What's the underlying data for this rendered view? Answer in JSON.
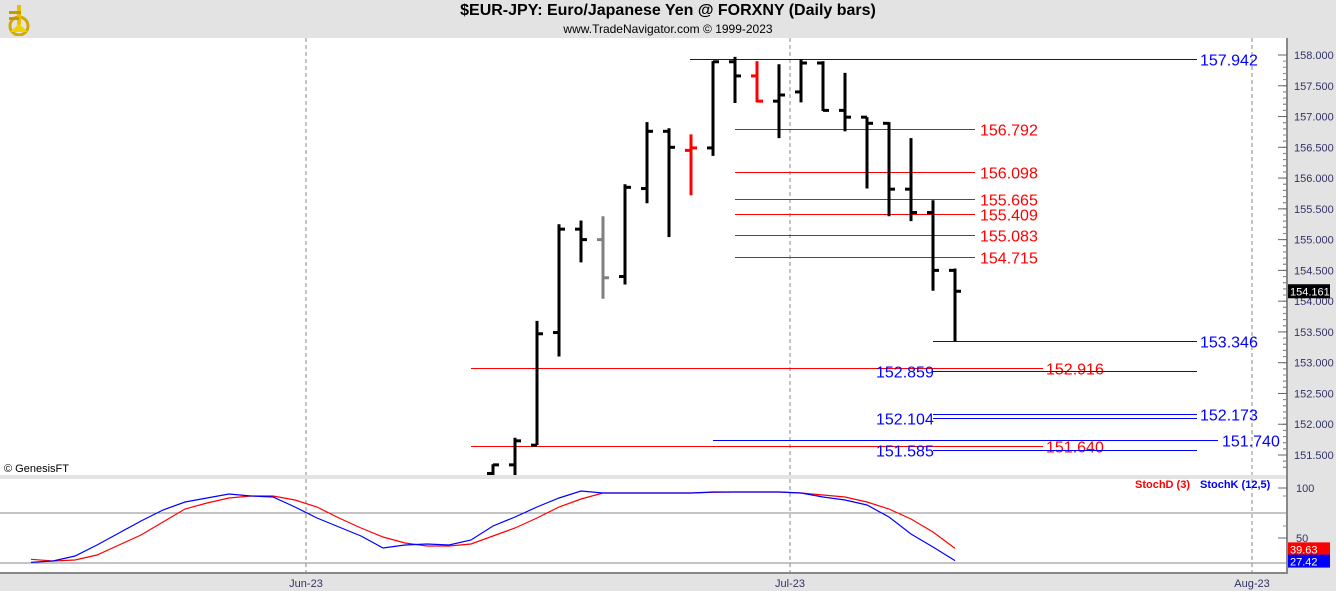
{
  "header": {
    "title": "$EUR-JPY:  Euro/Japanese Yen @ FORXNY  (Daily bars)",
    "subtitle": "www.TradeNavigator.com © 1999-2023",
    "logo": "sextant-logo"
  },
  "copyright": "© GenesisFT",
  "colors": {
    "bar": "#000000",
    "bar_gray": "#808080",
    "bar_red": "#ff0000",
    "blue": "#0000ff",
    "red": "#ff0000",
    "panel": "#e3e3e3"
  },
  "chart_data": [
    {
      "type": "ohlc",
      "title": "$EUR-JPY:  Euro/Japanese Yen @ FORXNY  (Daily bars)",
      "ylim": [
        151.2,
        158.3
      ],
      "y_ticks": [
        "158.000",
        "157.500",
        "157.000",
        "156.500",
        "156.000",
        "155.500",
        "155.000",
        "154.500",
        "154.000",
        "153.500",
        "153.000",
        "152.500",
        "152.000",
        "151.500"
      ],
      "x_ticks": [
        {
          "label": "Jun-23",
          "date": "2023-06-01"
        },
        {
          "label": "Jul-23",
          "date": "2023-07-03"
        },
        {
          "label": "Aug-23",
          "date": "2023-08-01"
        }
      ],
      "last_price": "154.161",
      "bars": [
        {
          "date": "2023-06-13",
          "o": 151.2,
          "h": 151.35,
          "l": 151.1,
          "c": 151.34,
          "color": "black"
        },
        {
          "date": "2023-06-14",
          "o": 151.34,
          "h": 151.78,
          "l": 151.15,
          "c": 151.73,
          "color": "black"
        },
        {
          "date": "2023-06-15",
          "o": 151.66,
          "h": 153.68,
          "l": 151.66,
          "c": 153.47,
          "color": "black"
        },
        {
          "date": "2023-06-16",
          "o": 153.49,
          "h": 155.25,
          "l": 153.1,
          "c": 155.17,
          "color": "black"
        },
        {
          "date": "2023-06-19",
          "o": 155.17,
          "h": 155.31,
          "l": 154.63,
          "c": 155.0,
          "color": "black"
        },
        {
          "date": "2023-06-20",
          "o": 155.0,
          "h": 155.38,
          "l": 154.04,
          "c": 154.38,
          "color": "gray"
        },
        {
          "date": "2023-06-21",
          "o": 154.4,
          "h": 155.9,
          "l": 154.27,
          "c": 155.85,
          "color": "black"
        },
        {
          "date": "2023-06-22",
          "o": 155.83,
          "h": 156.91,
          "l": 155.59,
          "c": 156.76,
          "color": "black"
        },
        {
          "date": "2023-06-23",
          "o": 156.76,
          "h": 156.81,
          "l": 155.04,
          "c": 156.5,
          "color": "black"
        },
        {
          "date": "2023-06-26",
          "o": 156.45,
          "h": 156.71,
          "l": 155.72,
          "c": 156.49,
          "color": "red"
        },
        {
          "date": "2023-06-27",
          "o": 156.49,
          "h": 157.9,
          "l": 156.36,
          "c": 157.89,
          "color": "black"
        },
        {
          "date": "2023-06-28",
          "o": 157.89,
          "h": 157.97,
          "l": 157.22,
          "c": 157.66,
          "color": "black"
        },
        {
          "date": "2023-06-29",
          "o": 157.66,
          "h": 157.9,
          "l": 157.23,
          "c": 157.25,
          "color": "red"
        },
        {
          "date": "2023-06-30",
          "o": 157.25,
          "h": 157.85,
          "l": 156.65,
          "c": 157.35,
          "color": "black"
        },
        {
          "date": "2023-07-03",
          "o": 157.4,
          "h": 157.93,
          "l": 157.23,
          "c": 157.87,
          "color": "black"
        },
        {
          "date": "2023-07-04",
          "o": 157.87,
          "h": 157.9,
          "l": 157.09,
          "c": 157.1,
          "color": "black"
        },
        {
          "date": "2023-07-05",
          "o": 157.1,
          "h": 157.71,
          "l": 156.76,
          "c": 156.99,
          "color": "black"
        },
        {
          "date": "2023-07-06",
          "o": 156.99,
          "h": 156.99,
          "l": 155.83,
          "c": 156.89,
          "color": "black"
        },
        {
          "date": "2023-07-07",
          "o": 156.89,
          "h": 156.91,
          "l": 155.38,
          "c": 155.82,
          "color": "black"
        },
        {
          "date": "2023-07-10",
          "o": 155.82,
          "h": 156.65,
          "l": 155.3,
          "c": 155.44,
          "color": "black"
        },
        {
          "date": "2023-07-11",
          "o": 155.44,
          "h": 155.64,
          "l": 154.17,
          "c": 154.5,
          "color": "black"
        },
        {
          "date": "2023-07-12",
          "o": 154.5,
          "h": 154.53,
          "l": 153.346,
          "c": 154.161,
          "color": "black"
        }
      ],
      "levels": [
        {
          "value": "157.942",
          "color": "blue",
          "label_side": "right"
        },
        {
          "value": "156.792",
          "color": "red",
          "label_side": "right"
        },
        {
          "value": "156.098",
          "color": "red",
          "label_side": "right"
        },
        {
          "value": "155.665",
          "color": "red",
          "label_side": "right"
        },
        {
          "value": "155.409",
          "color": "red",
          "label_side": "right"
        },
        {
          "value": "155.083",
          "color": "red",
          "label_side": "right"
        },
        {
          "value": "154.715",
          "color": "red",
          "label_side": "right"
        },
        {
          "value": "153.346",
          "color": "blue",
          "label_side": "right"
        },
        {
          "value": "152.916",
          "color": "red",
          "label_side": "right"
        },
        {
          "value": "152.859",
          "color": "blue",
          "label_side": "left"
        },
        {
          "value": "152.173",
          "color": "blue",
          "label_side": "right"
        },
        {
          "value": "152.104",
          "color": "blue",
          "label_side": "left"
        },
        {
          "value": "151.740",
          "color": "blue",
          "label_side": "right"
        },
        {
          "value": "151.640",
          "color": "red",
          "label_side": "right"
        },
        {
          "value": "151.585",
          "color": "blue",
          "label_side": "left"
        }
      ]
    },
    {
      "type": "line",
      "ylim": [
        15,
        105
      ],
      "y_ticks": [
        "100",
        "50"
      ],
      "reference_lines": [
        75,
        25
      ],
      "series": [
        {
          "name": "StochD (3)",
          "color": "#ff0000",
          "last": "39.63",
          "values": [
            28.7,
            27,
            28,
            33,
            43,
            53,
            66,
            79,
            85,
            90,
            92,
            92,
            88,
            81,
            70,
            60,
            51,
            45,
            42,
            42,
            44,
            52,
            60,
            70,
            81,
            89,
            95,
            95,
            95,
            95,
            95,
            95.7,
            96,
            96,
            96,
            95,
            93,
            91,
            86,
            79,
            69,
            56,
            39.63
          ]
        },
        {
          "name": "StochK (12,5)",
          "color": "#0000ff",
          "last": "27.42",
          "values": [
            25.7,
            27,
            32,
            43,
            55,
            67,
            78,
            86,
            90,
            94,
            92,
            91,
            81,
            70,
            61,
            52,
            40,
            43,
            44,
            43,
            48,
            62,
            71,
            81,
            90,
            97,
            95,
            95,
            95,
            95,
            95,
            96,
            96,
            96,
            96,
            95,
            91,
            88,
            83,
            71,
            54,
            41,
            27.42
          ]
        }
      ]
    }
  ]
}
